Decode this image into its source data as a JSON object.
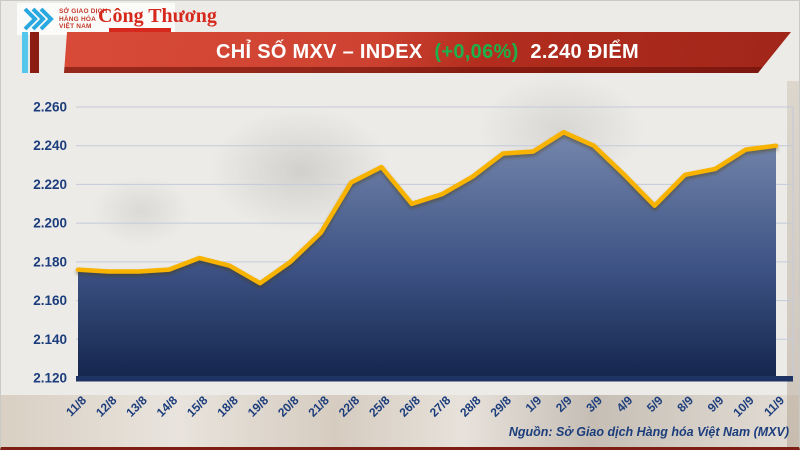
{
  "header": {
    "mxv_logo_lines": [
      "SỞ GIAO DỊCH",
      "HÀNG HÓA",
      "VIỆT NAM"
    ],
    "congthuong_logo": "Công Thương"
  },
  "banner": {
    "title_main": "CHỈ SỐ MXV – INDEX",
    "title_change": "(+0,06%)",
    "title_value": "2.240 ĐIỂM",
    "change_color": "#1FAF4B"
  },
  "chart_data": {
    "type": "area",
    "title": "CHỈ SỐ MXV – INDEX (+0,06%) 2.240 ĐIỂM",
    "x": [
      "11/8",
      "12/8",
      "13/8",
      "14/8",
      "15/8",
      "18/8",
      "19/8",
      "20/8",
      "21/8",
      "22/8",
      "25/8",
      "26/8",
      "27/8",
      "28/8",
      "29/8",
      "1/9",
      "2/9",
      "3/9",
      "4/9",
      "5/9",
      "8/9",
      "9/9",
      "10/9",
      "11/9"
    ],
    "values": [
      2176,
      2175,
      2175,
      2176,
      2182,
      2178,
      2169,
      2180,
      2195,
      2221,
      2229,
      2210,
      2215,
      2224,
      2236,
      2237,
      2247,
      2240,
      2225,
      2209,
      2225,
      2228,
      2238,
      2240
    ],
    "ylim": [
      2120,
      2260
    ],
    "ytick_step": 20,
    "ytick_labels": [
      "2.120",
      "2.140",
      "2.160",
      "2.180",
      "2.200",
      "2.220",
      "2.240",
      "2.260"
    ],
    "grid": true,
    "legend": "none",
    "colors": {
      "line": "#F7B300",
      "fill_top": "#7587AC",
      "fill_bottom": "#14264D",
      "grid_line": "#c4cad8",
      "axis_text": "#1c3d7c",
      "baseline": "#1e3263"
    }
  },
  "footer": {
    "source": "Nguồn: Sở Giao dịch Hàng hóa Việt Nam (MXV)"
  }
}
